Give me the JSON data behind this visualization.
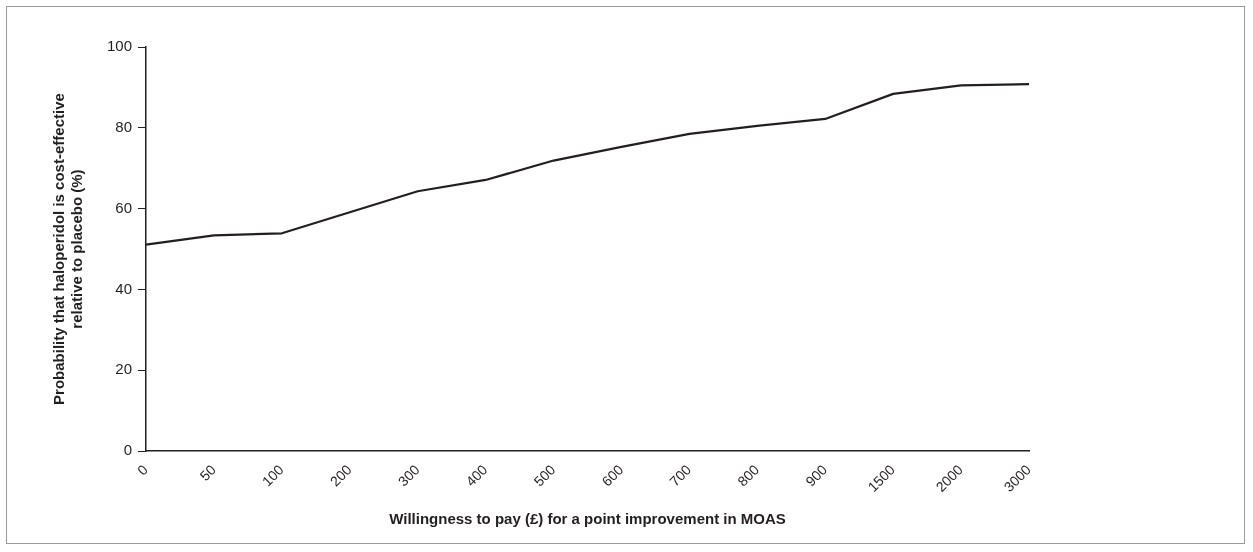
{
  "chart_data": {
    "type": "line",
    "xlabel": "Willingness to pay (£) for a point improvement in MOAS",
    "ylabel": "Probability that haloperidol is cost-effective\nrelative to placebo (%)",
    "categories": [
      "0",
      "50",
      "100",
      "200",
      "300",
      "400",
      "500",
      "600",
      "700",
      "800",
      "900",
      "1500",
      "2000",
      "3000"
    ],
    "series": [
      {
        "color": "#231f20",
        "values": [
          51.1,
          53.4,
          53.9,
          59.1,
          64.3,
          67.1,
          71.9,
          75.3,
          78.5,
          80.5,
          82.2,
          88.4,
          90.5,
          90.8
        ]
      }
    ],
    "ylim": [
      0,
      100
    ],
    "yticks": [
      0,
      20,
      40,
      60,
      80,
      100
    ],
    "grid": false,
    "legend": false,
    "marker": "none",
    "line_style": "solid"
  }
}
